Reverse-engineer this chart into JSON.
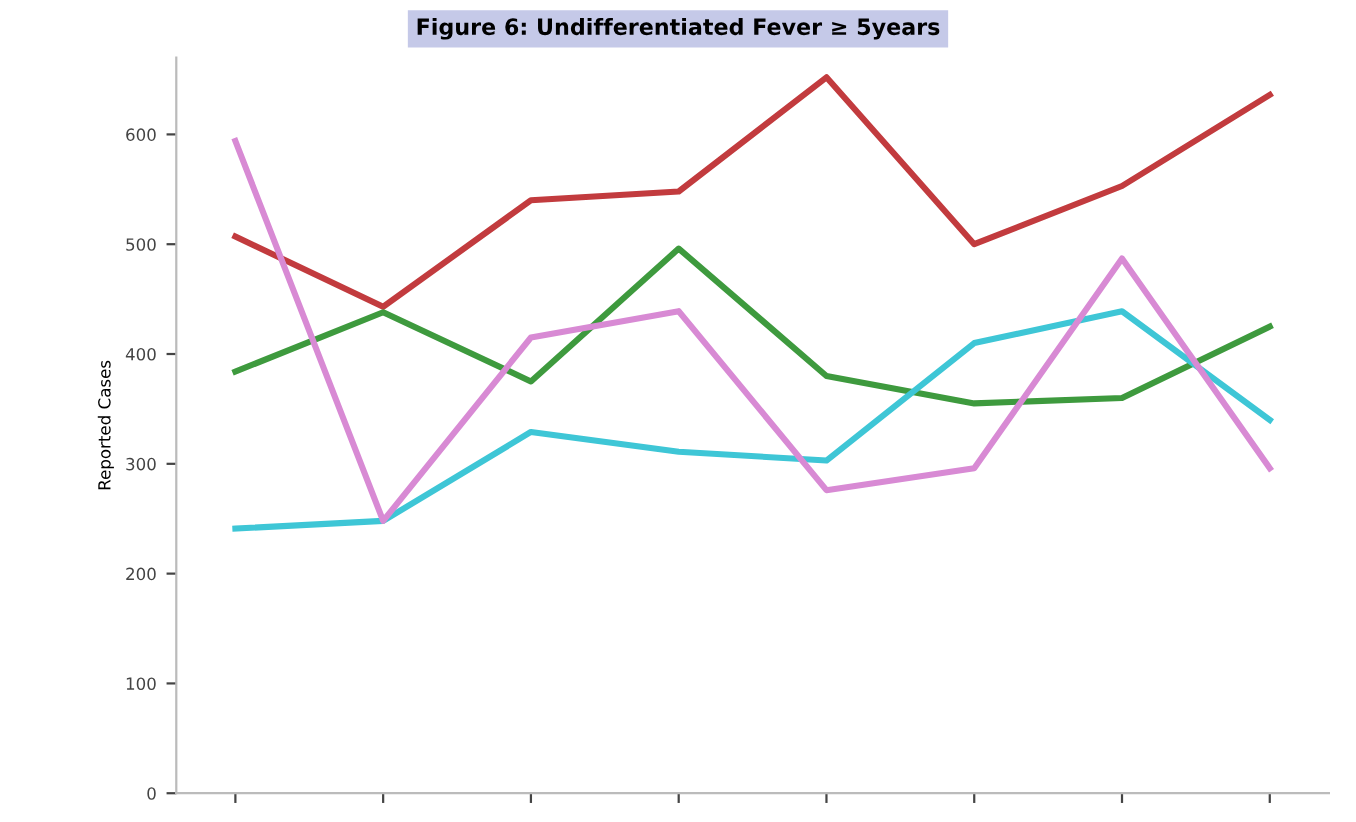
{
  "chart_data": {
    "type": "line",
    "title": "Figure 6: Undifferentiated Fever ≥ 5years",
    "ylabel": "Reported Cases",
    "categories": [
      null,
      null,
      null,
      null,
      null,
      null,
      null,
      null
    ],
    "series": [
      {
        "color": "#c23b3e",
        "values": [
          507,
          443,
          540,
          548,
          652,
          500,
          553,
          636
        ]
      },
      {
        "color": "#3e9a3e",
        "values": [
          384,
          438,
          375,
          496,
          380,
          355,
          360,
          425
        ]
      },
      {
        "color": "#3ec6d6",
        "values": [
          241,
          248,
          329,
          311,
          303,
          410,
          439,
          340
        ]
      },
      {
        "color": "#d88ad4",
        "values": [
          594,
          248,
          415,
          439,
          276,
          296,
          487,
          296
        ]
      }
    ],
    "ylim": [
      0,
      670
    ],
    "yticks": [
      0,
      100,
      200,
      300,
      400,
      500,
      600
    ],
    "grid": false,
    "legend": false,
    "marker": "none",
    "line_style": "solid"
  }
}
